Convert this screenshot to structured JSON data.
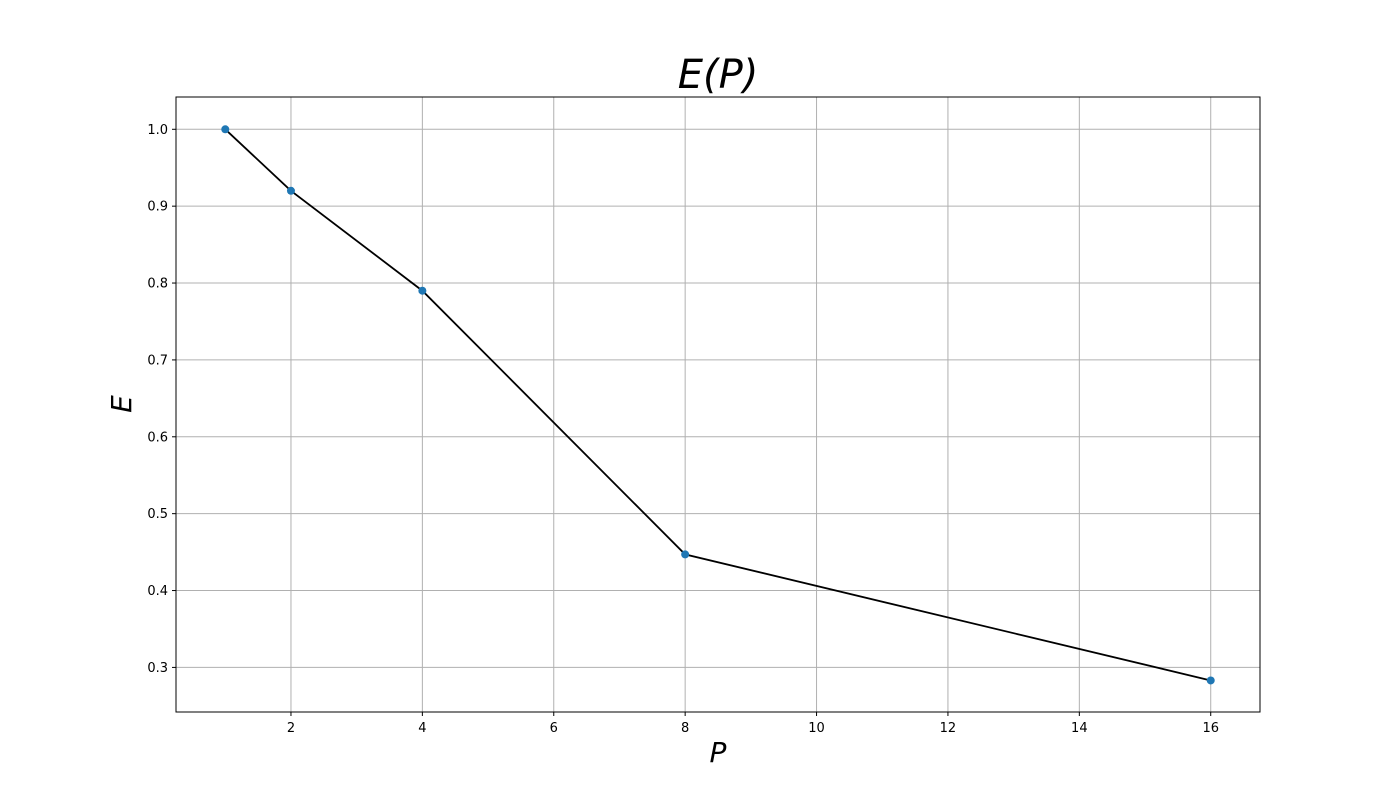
{
  "chart_data": {
    "type": "line",
    "title": "E(P)",
    "xlabel": "P",
    "ylabel": "E",
    "x": [
      1,
      2,
      4,
      8,
      16
    ],
    "series": [
      {
        "values": [
          1.0,
          0.92,
          0.79,
          0.447,
          0.283
        ]
      }
    ],
    "xlim": [
      0.25,
      16.75
    ],
    "ylim": [
      0.242,
      1.042
    ],
    "xticks": [
      2,
      4,
      6,
      8,
      10,
      12,
      14,
      16
    ],
    "yticks": [
      0.3,
      0.4,
      0.5,
      0.6,
      0.7,
      0.8,
      0.9,
      1.0
    ],
    "xtick_labels": [
      "2",
      "4",
      "6",
      "8",
      "10",
      "12",
      "14",
      "16"
    ],
    "ytick_labels": [
      "0.3",
      "0.4",
      "0.5",
      "0.6",
      "0.7",
      "0.8",
      "0.9",
      "1.0"
    ],
    "grid": true,
    "line_color": "#000000",
    "marker_color": "#1f77b4"
  }
}
